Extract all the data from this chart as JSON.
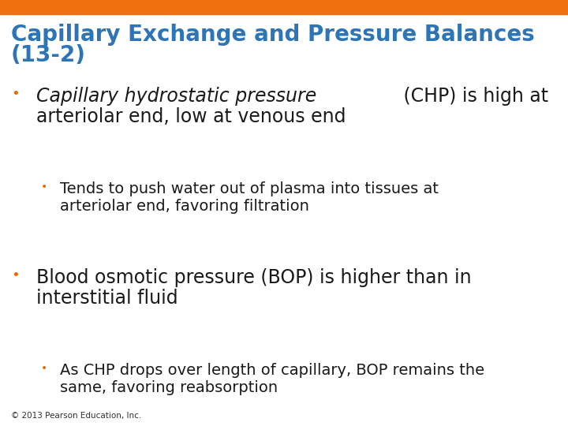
{
  "title_line1": "Capillary Exchange and Pressure Balances",
  "title_line2": "(13-2)",
  "title_color": "#2E75B6",
  "title_fontsize": 20,
  "background_color": "#FFFFFF",
  "top_bar_color": "#F07010",
  "bullet_color": "#E36C09",
  "footer_text": "© 2013 Pearson Education, Inc.",
  "footer_fontsize": 7.5,
  "footer_color": "#303030",
  "content": [
    {
      "level": 1,
      "lines": [
        {
          "italic": "Capillary hydrostatic pressure",
          "normal": " (CHP) is high at"
        },
        {
          "italic": "",
          "normal": "arteriolar end, low at venous end"
        }
      ],
      "fontsize": 17
    },
    {
      "level": 2,
      "lines": [
        {
          "italic": "",
          "normal": "Tends to push water out of plasma into tissues at"
        },
        {
          "italic": "",
          "normal": "arteriolar end, favoring filtration"
        }
      ],
      "fontsize": 14
    },
    {
      "level": 1,
      "lines": [
        {
          "italic": "",
          "normal": "Blood osmotic pressure (BOP) is higher than in"
        },
        {
          "italic": "",
          "normal": "interstitial fluid"
        }
      ],
      "fontsize": 17
    },
    {
      "level": 2,
      "lines": [
        {
          "italic": "",
          "normal": "As CHP drops over length of capillary, BOP remains the"
        },
        {
          "italic": "",
          "normal": "same, favoring reabsorption"
        }
      ],
      "fontsize": 14
    }
  ]
}
